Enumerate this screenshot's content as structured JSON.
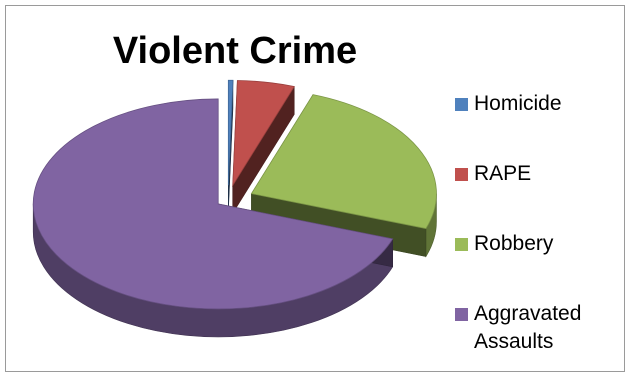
{
  "chart_data": {
    "type": "pie",
    "title": "Violent Crime",
    "legend_position": "right",
    "exploded": true,
    "three_d": true,
    "slices": [
      {
        "label": "Homicide",
        "value": 0.4,
        "color": "#4F81BD"
      },
      {
        "label": "RAPE",
        "value": 5,
        "color": "#C0504D"
      },
      {
        "label": "Robbery",
        "value": 25,
        "color": "#9BBB59"
      },
      {
        "label": "Aggravated Assaults",
        "value": 69.6,
        "color": "#8064A2"
      }
    ]
  }
}
